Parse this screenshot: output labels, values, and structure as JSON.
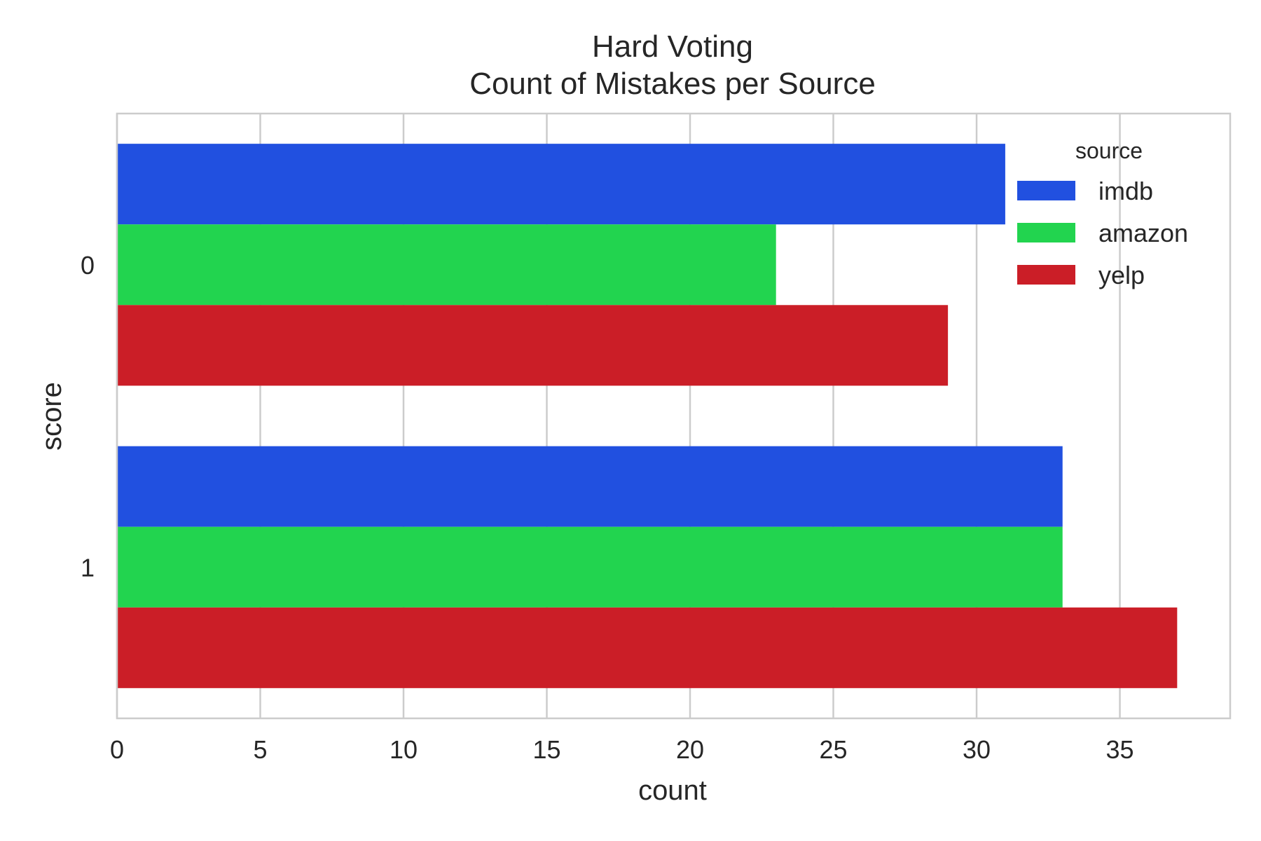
{
  "chart_data": {
    "type": "bar",
    "orientation": "horizontal",
    "title": "Hard Voting",
    "subtitle": "Count of Mistakes per Source",
    "xlabel": "count",
    "ylabel": "score",
    "categories": [
      "0",
      "1"
    ],
    "series": [
      {
        "name": "imdb",
        "values": [
          31,
          33
        ],
        "color": "#2150e0"
      },
      {
        "name": "amazon",
        "values": [
          23,
          33
        ],
        "color": "#22d44f"
      },
      {
        "name": "yelp",
        "values": [
          29,
          37
        ],
        "color": "#cb1e27"
      }
    ],
    "xlim": [
      0,
      38.85
    ],
    "xticks": [
      0,
      5,
      10,
      15,
      20,
      25,
      30,
      35
    ],
    "grid": true,
    "legend": {
      "title": "source",
      "position": "top-right"
    }
  }
}
